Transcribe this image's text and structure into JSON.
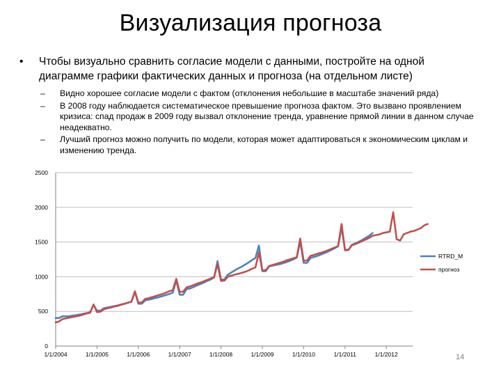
{
  "slide": {
    "title": "Визуализация прогноза",
    "bullet_symbol": "•",
    "bullet": "Чтобы визуально сравнить согласие модели с данными, постройте на одной диаграмме графики фактических данных и прогноза (на отдельном листе)",
    "sub_symbol": "–",
    "sub_bullets": [
      "Видно хорошее согласие модели с фактом (отклонения небольшие в масштабе значений ряда)",
      "В 2008 году наблюдается систематическое превышение прогноза фактом. Это вызвано проявлением кризиса: спад продаж в 2009 году вызвал отклонение тренда, уравнение прямой линии в данном случае неадекватно.",
      "Лучший прогноз можно получить по модели, которая может адаптироваться к экономическим циклам и изменению тренда."
    ],
    "page_number": "14"
  },
  "chart_data": {
    "type": "line",
    "x_type": "monthly",
    "x_start": "1/1/2004",
    "x_ticks": [
      "1/1/2004",
      "1/1/2005",
      "1/1/2006",
      "1/1/2007",
      "1/1/2008",
      "1/1/2009",
      "1/1/2010",
      "1/1/2011",
      "1/1/2012"
    ],
    "ylim": [
      0,
      2500
    ],
    "y_ticks": [
      0,
      500,
      1000,
      1500,
      2000,
      2500
    ],
    "grid": "horizontal",
    "legend": "right",
    "series": [
      {
        "name": "RTRD_M",
        "color": "#4f81bd",
        "values": [
          405,
          405,
          430,
          430,
          430,
          440,
          445,
          455,
          465,
          475,
          490,
          590,
          510,
          510,
          545,
          555,
          565,
          575,
          585,
          600,
          610,
          625,
          640,
          780,
          610,
          610,
          660,
          670,
          680,
          695,
          705,
          720,
          735,
          750,
          770,
          950,
          740,
          740,
          820,
          830,
          850,
          875,
          895,
          915,
          940,
          960,
          990,
          1225,
          960,
          960,
          1030,
          1060,
          1090,
          1120,
          1145,
          1175,
          1205,
          1240,
          1270,
          1450,
          1080,
          1080,
          1150,
          1160,
          1170,
          1180,
          1195,
          1210,
          1230,
          1250,
          1275,
          1510,
          1200,
          1200,
          1270,
          1285,
          1300,
          1320,
          1340,
          1360,
          1385,
          1410,
          1440,
          1710,
          1390,
          1390,
          1460,
          1480,
          1505,
          1530,
          1560,
          1590,
          1630
        ]
      },
      {
        "name": "прогноз",
        "color": "#c0504d",
        "values": [
          340,
          355,
          390,
          400,
          410,
          420,
          430,
          440,
          455,
          470,
          480,
          600,
          490,
          495,
          530,
          545,
          555,
          570,
          580,
          595,
          610,
          625,
          640,
          790,
          625,
          630,
          680,
          690,
          705,
          720,
          735,
          750,
          770,
          790,
          805,
          970,
          780,
          785,
          845,
          860,
          880,
          900,
          915,
          935,
          955,
          975,
          995,
          1180,
          940,
          945,
          1000,
          1015,
          1030,
          1040,
          1055,
          1070,
          1090,
          1115,
          1135,
          1350,
          1090,
          1095,
          1155,
          1170,
          1185,
          1200,
          1215,
          1235,
          1250,
          1265,
          1280,
          1550,
          1230,
          1235,
          1300,
          1315,
          1330,
          1345,
          1360,
          1380,
          1400,
          1420,
          1440,
          1760,
          1380,
          1385,
          1455,
          1470,
          1490,
          1515,
          1535,
          1560,
          1590,
          1600,
          1610,
          1630,
          1640,
          1650,
          1930,
          1540,
          1520,
          1610,
          1630,
          1650,
          1660,
          1680,
          1700,
          1740,
          1760
        ]
      }
    ]
  }
}
